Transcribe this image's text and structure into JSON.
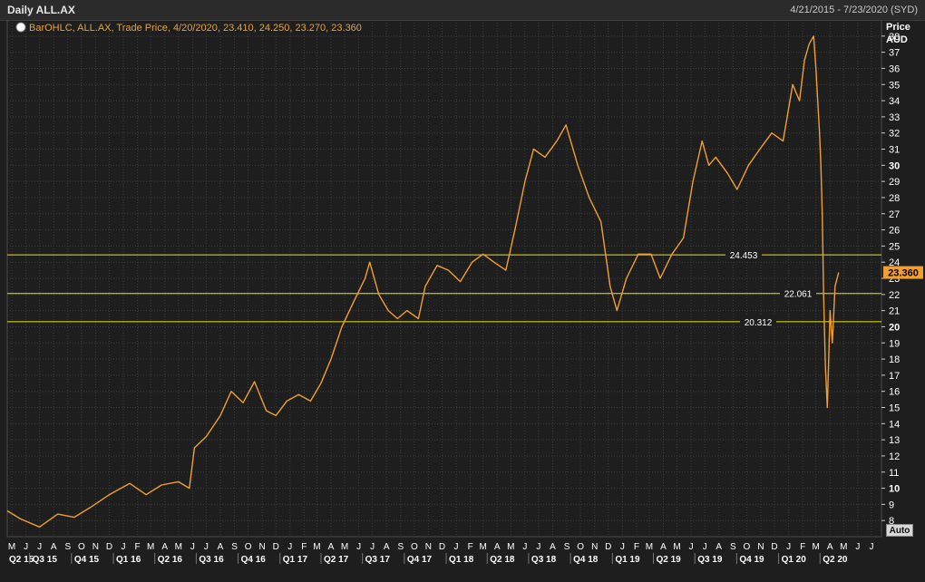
{
  "window": {
    "title": "Daily ALL.AX",
    "date_range": "4/21/2015 - 7/23/2020 (SYD)"
  },
  "legend": {
    "icon": "magnifier-icon",
    "text": "BarOHLC, ALL.AX, Trade Price,  4/20/2020, 23.410, 24.250, 23.270, 23.360"
  },
  "axis": {
    "price_label": "Price",
    "currency_label": "AUD",
    "auto_button": "Auto"
  },
  "colors": {
    "background": "#1e1e1e",
    "grid": "#3c3c3c",
    "series": "#f0a030",
    "hline": "#e8e020",
    "last_price_bg": "#f0a030"
  },
  "chart_data": {
    "type": "line",
    "ylabel": "Price AUD",
    "ylim": [
      7,
      39
    ],
    "y_ticks": [
      8,
      9,
      10,
      11,
      12,
      13,
      14,
      15,
      16,
      17,
      18,
      19,
      20,
      21,
      22,
      23,
      24,
      25,
      26,
      27,
      28,
      29,
      30,
      31,
      32,
      33,
      34,
      35,
      36,
      37,
      38
    ],
    "x_range": [
      "2015-04-21",
      "2020-07-23"
    ],
    "month_ticks": [
      "M",
      "J",
      "J",
      "A",
      "S",
      "O",
      "N",
      "D",
      "J",
      "F",
      "M",
      "A",
      "M",
      "J",
      "J",
      "A",
      "S",
      "O",
      "N",
      "D",
      "J",
      "F",
      "M",
      "A",
      "M",
      "J",
      "J",
      "A",
      "S",
      "O",
      "N",
      "D",
      "J",
      "F",
      "M",
      "A",
      "M",
      "J",
      "J",
      "A",
      "S",
      "O",
      "N",
      "D",
      "J",
      "F",
      "M",
      "A",
      "M",
      "J",
      "J",
      "A",
      "S",
      "O",
      "N",
      "D",
      "J",
      "F",
      "M",
      "A",
      "M",
      "J",
      "J"
    ],
    "quarter_ticks": [
      "Q2 15",
      "Q3 15",
      "Q4 15",
      "Q1 16",
      "Q2 16",
      "Q3 16",
      "Q4 16",
      "Q1 17",
      "Q2 17",
      "Q3 17",
      "Q4 17",
      "Q1 18",
      "Q2 18",
      "Q3 18",
      "Q4 18",
      "Q1 19",
      "Q2 19",
      "Q3 19",
      "Q4 19",
      "Q1 20",
      "Q2 20"
    ],
    "horizontal_lines": [
      {
        "label": "24.453",
        "value": 24.453
      },
      {
        "label": "22.061",
        "value": 22.061
      },
      {
        "label": "20.312",
        "value": 20.312
      }
    ],
    "last_price": {
      "label": "23.360",
      "value": 23.36
    },
    "series": [
      {
        "x": [
          "2015-04-21",
          "2015-05-20",
          "2015-07-01",
          "2015-08-10",
          "2015-09-15",
          "2015-10-20",
          "2015-12-01",
          "2016-01-15",
          "2016-02-20",
          "2016-03-25",
          "2016-05-01",
          "2016-05-25",
          "2016-06-05",
          "2016-07-01",
          "2016-08-01",
          "2016-08-25",
          "2016-09-20",
          "2016-10-15",
          "2016-11-10",
          "2016-12-01",
          "2016-12-25",
          "2017-01-20",
          "2017-02-15",
          "2017-03-10",
          "2017-04-01",
          "2017-04-25",
          "2017-05-20",
          "2017-06-15",
          "2017-06-25",
          "2017-07-15",
          "2017-08-05",
          "2017-08-25",
          "2017-09-15",
          "2017-10-10",
          "2017-10-25",
          "2017-11-20",
          "2017-12-15",
          "2018-01-10",
          "2018-02-05",
          "2018-03-01",
          "2018-03-25",
          "2018-04-20",
          "2018-05-10",
          "2018-06-01",
          "2018-06-20",
          "2018-07-15",
          "2018-08-10",
          "2018-08-30",
          "2018-09-25",
          "2018-10-20",
          "2018-11-15",
          "2018-12-05",
          "2018-12-20",
          "2019-01-10",
          "2019-02-05",
          "2019-03-05",
          "2019-03-25",
          "2019-04-20",
          "2019-05-15",
          "2019-06-05",
          "2019-06-25",
          "2019-07-10",
          "2019-07-25",
          "2019-08-20",
          "2019-09-10",
          "2019-10-05",
          "2019-10-30",
          "2019-11-25",
          "2019-12-20",
          "2020-01-10",
          "2020-01-25",
          "2020-02-05",
          "2020-02-15",
          "2020-02-25",
          "2020-03-01",
          "2020-03-05",
          "2020-03-09",
          "2020-03-12",
          "2020-03-15",
          "2020-03-18",
          "2020-03-22",
          "2020-03-26",
          "2020-04-01",
          "2020-04-06",
          "2020-04-12",
          "2020-04-20"
        ],
        "y": [
          8.6,
          8.1,
          7.6,
          8.4,
          8.2,
          8.8,
          9.6,
          10.3,
          9.6,
          10.2,
          10.4,
          10.0,
          12.5,
          13.2,
          14.5,
          16.0,
          15.3,
          16.6,
          14.8,
          14.5,
          15.4,
          15.8,
          15.4,
          16.5,
          18.0,
          20.0,
          21.5,
          23.0,
          24.0,
          22.0,
          21.0,
          20.5,
          21.0,
          20.5,
          22.5,
          23.8,
          23.5,
          22.8,
          24.0,
          24.5,
          24.0,
          23.5,
          26.0,
          29.0,
          31.0,
          30.5,
          31.5,
          32.5,
          30.0,
          28.0,
          26.5,
          22.5,
          21.0,
          23.0,
          24.5,
          24.5,
          23.0,
          24.5,
          25.5,
          29.0,
          31.5,
          30.0,
          30.5,
          29.5,
          28.5,
          30.0,
          31.0,
          32.0,
          31.5,
          35.0,
          34.0,
          36.5,
          37.5,
          38.0,
          36.0,
          34.0,
          32.0,
          30.0,
          27.0,
          22.0,
          17.5,
          15.0,
          21.0,
          19.0,
          22.5,
          23.36
        ]
      }
    ]
  }
}
